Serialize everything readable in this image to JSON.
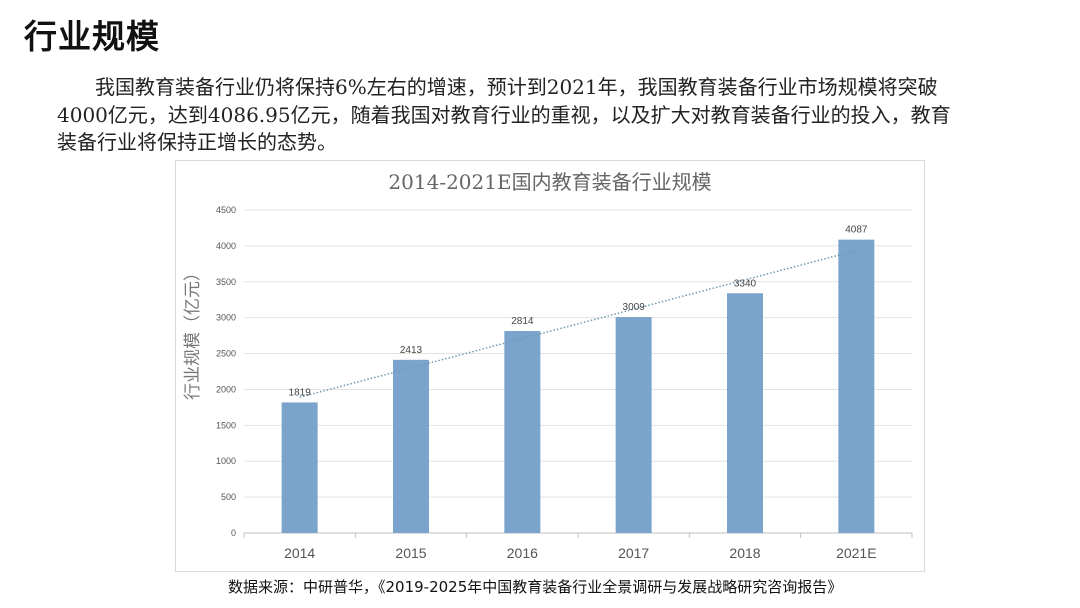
{
  "heading": "行业规模",
  "paragraph": "我国教育装备行业仍将保持6%左右的增速，预计到2021年，我国教育装备行业市场规模将突破4000亿元，达到4086.95亿元，随着我国对教育行业的重视，以及扩大对教育装备行业的投入，教育装备行业将保持正增长的态势。",
  "source": "数据来源：中研普华，《2019-2025年中国教育装备行业全景调研与发展战略研究咨询报告》",
  "chart_data": {
    "type": "bar",
    "title": "2014-2021E国内教育装备行业规模",
    "xlabel": "",
    "ylabel": "行业规模（亿元）",
    "categories": [
      "2014",
      "2015",
      "2016",
      "2017",
      "2018",
      "2021E"
    ],
    "values": [
      1819,
      2413,
      2814,
      3009,
      3340,
      4087
    ],
    "data_labels": [
      "1819",
      "2413",
      "2814",
      "3009",
      "3340",
      "4087"
    ],
    "ylim": [
      0,
      4500
    ],
    "yticks": [
      0,
      500,
      1000,
      1500,
      2000,
      2500,
      3000,
      3500,
      4000,
      4500
    ],
    "grid": true,
    "trendline": "linear dotted",
    "bar_color": "#7aa4cc",
    "trend_color": "#6f9bb5"
  }
}
